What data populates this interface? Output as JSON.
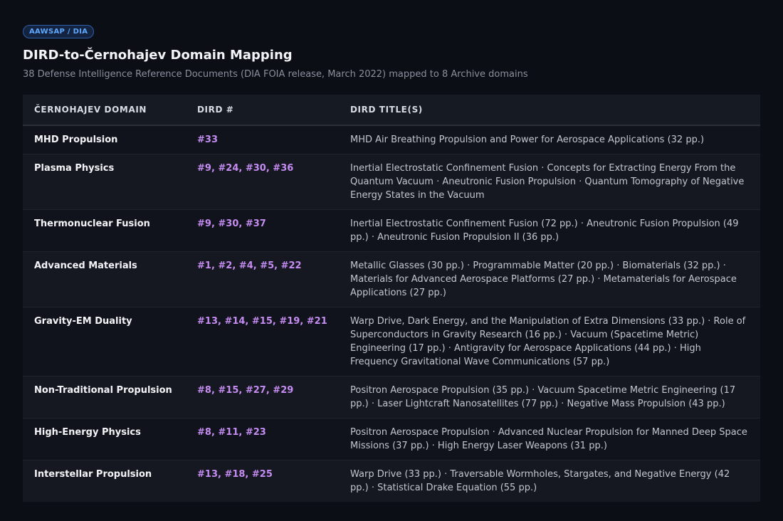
{
  "badge": "AAWSAP / DIA",
  "title": "DIRD-to-Černohajev Domain Mapping",
  "subtitle": "38 Defense Intelligence Reference Documents (DIA FOIA release, March 2022) mapped to 8 Archive domains",
  "table": {
    "headers": [
      "ČERNOHAJEV DOMAIN",
      "DIRD #",
      "DIRD TITLE(S)"
    ],
    "rows": [
      {
        "domain": "MHD Propulsion",
        "dird": "#33",
        "titles": "MHD Air Breathing Propulsion and Power for Aerospace Applications (32 pp.)"
      },
      {
        "domain": "Plasma Physics",
        "dird": "#9, #24, #30, #36",
        "titles": "Inertial Electrostatic Confinement Fusion · Concepts for Extracting Energy From the Quantum Vacuum · Aneutronic Fusion Propulsion · Quantum Tomography of Negative Energy States in the Vacuum"
      },
      {
        "domain": "Thermonuclear Fusion",
        "dird": "#9, #30, #37",
        "titles": "Inertial Electrostatic Confinement Fusion (72 pp.) · Aneutronic Fusion Propulsion (49 pp.) · Aneutronic Fusion Propulsion II (36 pp.)"
      },
      {
        "domain": "Advanced Materials",
        "dird": "#1, #2, #4, #5, #22",
        "titles": "Metallic Glasses (30 pp.) · Programmable Matter (20 pp.) · Biomaterials (32 pp.) · Materials for Advanced Aerospace Platforms (27 pp.) · Metamaterials for Aerospace Applications (27 pp.)"
      },
      {
        "domain": "Gravity-EM Duality",
        "dird": "#13, #14, #15, #19, #21",
        "titles": "Warp Drive, Dark Energy, and the Manipulation of Extra Dimensions (33 pp.) · Role of Superconductors in Gravity Research (16 pp.) · Vacuum (Spacetime Metric) Engineering (17 pp.) · Antigravity for Aerospace Applications (44 pp.) · High Frequency Gravitational Wave Communications (57 pp.)"
      },
      {
        "domain": "Non-Traditional Propulsion",
        "dird": "#8, #15, #27, #29",
        "titles": "Positron Aerospace Propulsion (35 pp.) · Vacuum Spacetime Metric Engineering (17 pp.) · Laser Lightcraft Nanosatellites (77 pp.) · Negative Mass Propulsion (43 pp.)"
      },
      {
        "domain": "High-Energy Physics",
        "dird": "#8, #11, #23",
        "titles": "Positron Aerospace Propulsion · Advanced Nuclear Propulsion for Manned Deep Space Missions (37 pp.) · High Energy Laser Weapons (31 pp.)"
      },
      {
        "domain": "Interstellar Propulsion",
        "dird": "#13, #18, #25",
        "titles": "Warp Drive (33 pp.) · Traversable Wormholes, Stargates, and Negative Energy (42 pp.) · Statistical Drake Equation (55 pp.)"
      }
    ]
  }
}
